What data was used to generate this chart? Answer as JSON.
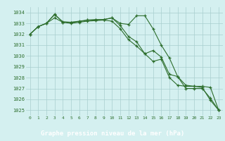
{
  "x": [
    0,
    1,
    2,
    3,
    4,
    5,
    6,
    7,
    8,
    9,
    10,
    11,
    12,
    13,
    14,
    15,
    16,
    17,
    18,
    19,
    20,
    21,
    22,
    23
  ],
  "line1": [
    1032.0,
    1032.7,
    1033.0,
    1033.8,
    1033.15,
    1033.1,
    1033.15,
    1033.3,
    1033.3,
    1033.35,
    1033.5,
    1033.0,
    1032.9,
    1033.7,
    1033.7,
    1032.5,
    1031.0,
    1029.8,
    1028.1,
    1027.3,
    1027.2,
    1027.1,
    1025.9,
    1025.0
  ],
  "line2": [
    1032.0,
    1032.7,
    1033.0,
    1033.85,
    1033.1,
    1033.1,
    1033.2,
    1033.3,
    1033.35,
    1033.35,
    1033.5,
    1032.8,
    1031.8,
    1031.3,
    1030.2,
    1029.5,
    1029.7,
    1028.0,
    1027.3,
    1027.2,
    1027.2,
    1027.2,
    1027.1,
    1025.0
  ],
  "line3": [
    1032.0,
    1032.7,
    1033.0,
    1033.5,
    1033.1,
    1033.0,
    1033.1,
    1033.2,
    1033.25,
    1033.3,
    1033.2,
    1032.5,
    1031.5,
    1030.9,
    1030.2,
    1030.5,
    1029.9,
    1028.3,
    1028.1,
    1027.0,
    1027.0,
    1027.0,
    1026.1,
    1025.0
  ],
  "ylim": [
    1024.5,
    1034.5
  ],
  "yticks": [
    1025,
    1026,
    1027,
    1028,
    1029,
    1030,
    1031,
    1032,
    1033,
    1034
  ],
  "xticks": [
    0,
    1,
    2,
    3,
    4,
    5,
    6,
    7,
    8,
    9,
    10,
    11,
    12,
    13,
    14,
    15,
    16,
    17,
    18,
    19,
    20,
    21,
    22,
    23
  ],
  "line_color": "#2d6e2d",
  "bg_color": "#d4f0f0",
  "grid_color": "#a8cece",
  "xlabel": "Graphe pression niveau de la mer (hPa)",
  "xlabel_bg": "#2d6e2d",
  "xlabel_fg": "#ffffff"
}
